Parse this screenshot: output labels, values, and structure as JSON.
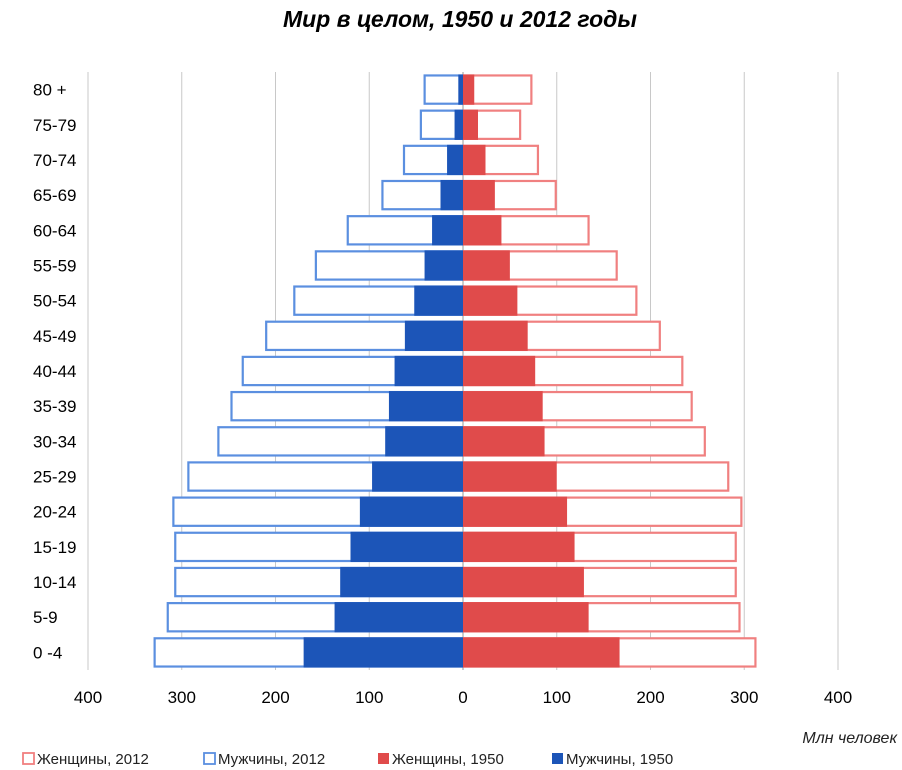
{
  "chart_data": {
    "type": "bar",
    "orientation": "horizontal-population-pyramid",
    "title": "Мир в целом, 1950 и 2012 годы",
    "unit_label": "Млн человек",
    "categories": [
      "0 -4",
      "5-9",
      "10-14",
      "15-19",
      "20-24",
      "25-29",
      "30-34",
      "35-39",
      "40-44",
      "45-49",
      "50-54",
      "55-59",
      "60-64",
      "65-69",
      "70-74",
      "75-79",
      "80 +"
    ],
    "x_ticks": [
      "400",
      "300",
      "200",
      "100",
      "0",
      "100",
      "200",
      "300",
      "400"
    ],
    "xlim": [
      -400,
      400
    ],
    "grid": true,
    "legend_position": "bottom",
    "series": [
      {
        "name": "Женщины, 2012",
        "side": "right",
        "style": "outline",
        "color": "#f08080",
        "values": [
          313,
          296,
          292,
          292,
          298,
          284,
          259,
          245,
          235,
          211,
          186,
          165,
          135,
          100,
          81,
          62,
          74
        ]
      },
      {
        "name": "Мужчины, 2012",
        "side": "left",
        "style": "outline",
        "color": "#5b8fe0",
        "values": [
          330,
          316,
          308,
          308,
          310,
          294,
          262,
          248,
          236,
          211,
          181,
          158,
          124,
          87,
          64,
          46,
          42
        ]
      },
      {
        "name": "Женщины, 1950",
        "side": "right",
        "style": "filled",
        "color": "#e04b4b",
        "values": [
          167,
          134,
          129,
          119,
          111,
          100,
          87,
          85,
          77,
          69,
          58,
          50,
          41,
          34,
          24,
          16,
          12
        ]
      },
      {
        "name": "Мужчины, 1950",
        "side": "left",
        "style": "filled",
        "color": "#1c55b8",
        "values": [
          170,
          137,
          131,
          120,
          110,
          97,
          83,
          79,
          73,
          62,
          52,
          41,
          33,
          24,
          17,
          9,
          5
        ]
      }
    ]
  }
}
